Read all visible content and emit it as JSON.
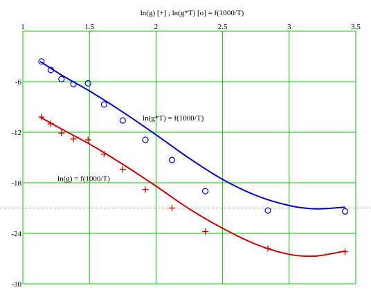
{
  "chart_data": {
    "type": "scatter",
    "title": "ln(g) [+] , ln(g*T) [o] = f(1000/T)",
    "xlabel": "",
    "ylabel": "",
    "xlim": [
      1,
      3.5
    ],
    "ylim": [
      -30,
      0
    ],
    "x_ticks": [
      1,
      1.5,
      2,
      2.5,
      3,
      3.5
    ],
    "x_tick_labels": [
      "1",
      "1.5",
      "2",
      "2.5",
      "3",
      "3.5"
    ],
    "y_ticks": [
      -6,
      -12,
      -18,
      -24,
      -30
    ],
    "y_tick_labels": [
      "-6",
      "-12",
      "-18",
      "-24",
      "-30"
    ],
    "grid": true,
    "grid_color": "#00cc00",
    "reference_line": {
      "y": -21,
      "color": "#aaaaaa",
      "style": "dashed"
    },
    "series": [
      {
        "name": "ln(g*T) = f(1000/T)",
        "color": "#0000cc",
        "marker": "circle",
        "x": [
          1.14,
          1.21,
          1.29,
          1.38,
          1.49,
          1.61,
          1.75,
          1.92,
          2.12,
          2.37,
          2.84,
          3.42
        ],
        "y": [
          -3.6,
          -4.6,
          -5.7,
          -6.3,
          -6.2,
          -8.7,
          -10.6,
          -12.9,
          -15.3,
          -19.0,
          -21.3,
          -21.4
        ],
        "fit": [
          [
            1.13,
            -3.6
          ],
          [
            1.3,
            -5.3
          ],
          [
            1.5,
            -7.1
          ],
          [
            1.75,
            -9.6
          ],
          [
            2.0,
            -12.3
          ],
          [
            2.25,
            -15.1
          ],
          [
            2.5,
            -17.6
          ],
          [
            2.75,
            -19.5
          ],
          [
            3.0,
            -20.7
          ],
          [
            3.2,
            -21.1
          ],
          [
            3.42,
            -20.9
          ]
        ]
      },
      {
        "name": "ln(g) = f(1000/T)",
        "color": "#cc0000",
        "marker": "plus",
        "x": [
          1.14,
          1.21,
          1.29,
          1.38,
          1.49,
          1.61,
          1.75,
          1.92,
          2.12,
          2.37,
          2.84,
          3.42
        ],
        "y": [
          -10.2,
          -11.0,
          -12.1,
          -12.8,
          -12.9,
          -14.6,
          -16.4,
          -18.8,
          -21.0,
          -23.8,
          -25.8,
          -26.2
        ],
        "fit": [
          [
            1.13,
            -10.2
          ],
          [
            1.3,
            -11.7
          ],
          [
            1.5,
            -13.4
          ],
          [
            1.75,
            -15.8
          ],
          [
            2.0,
            -18.4
          ],
          [
            2.25,
            -21.1
          ],
          [
            2.5,
            -23.4
          ],
          [
            2.75,
            -25.3
          ],
          [
            3.0,
            -26.5
          ],
          [
            3.2,
            -26.7
          ],
          [
            3.42,
            -26.1
          ]
        ]
      }
    ],
    "annotations": [
      {
        "text": "ln(g*T) = f(1000/T)",
        "x": 1.9,
        "y": -10.6
      },
      {
        "text": "ln(g) = f(1000/T)",
        "x": 1.26,
        "y": -17.8
      }
    ]
  }
}
